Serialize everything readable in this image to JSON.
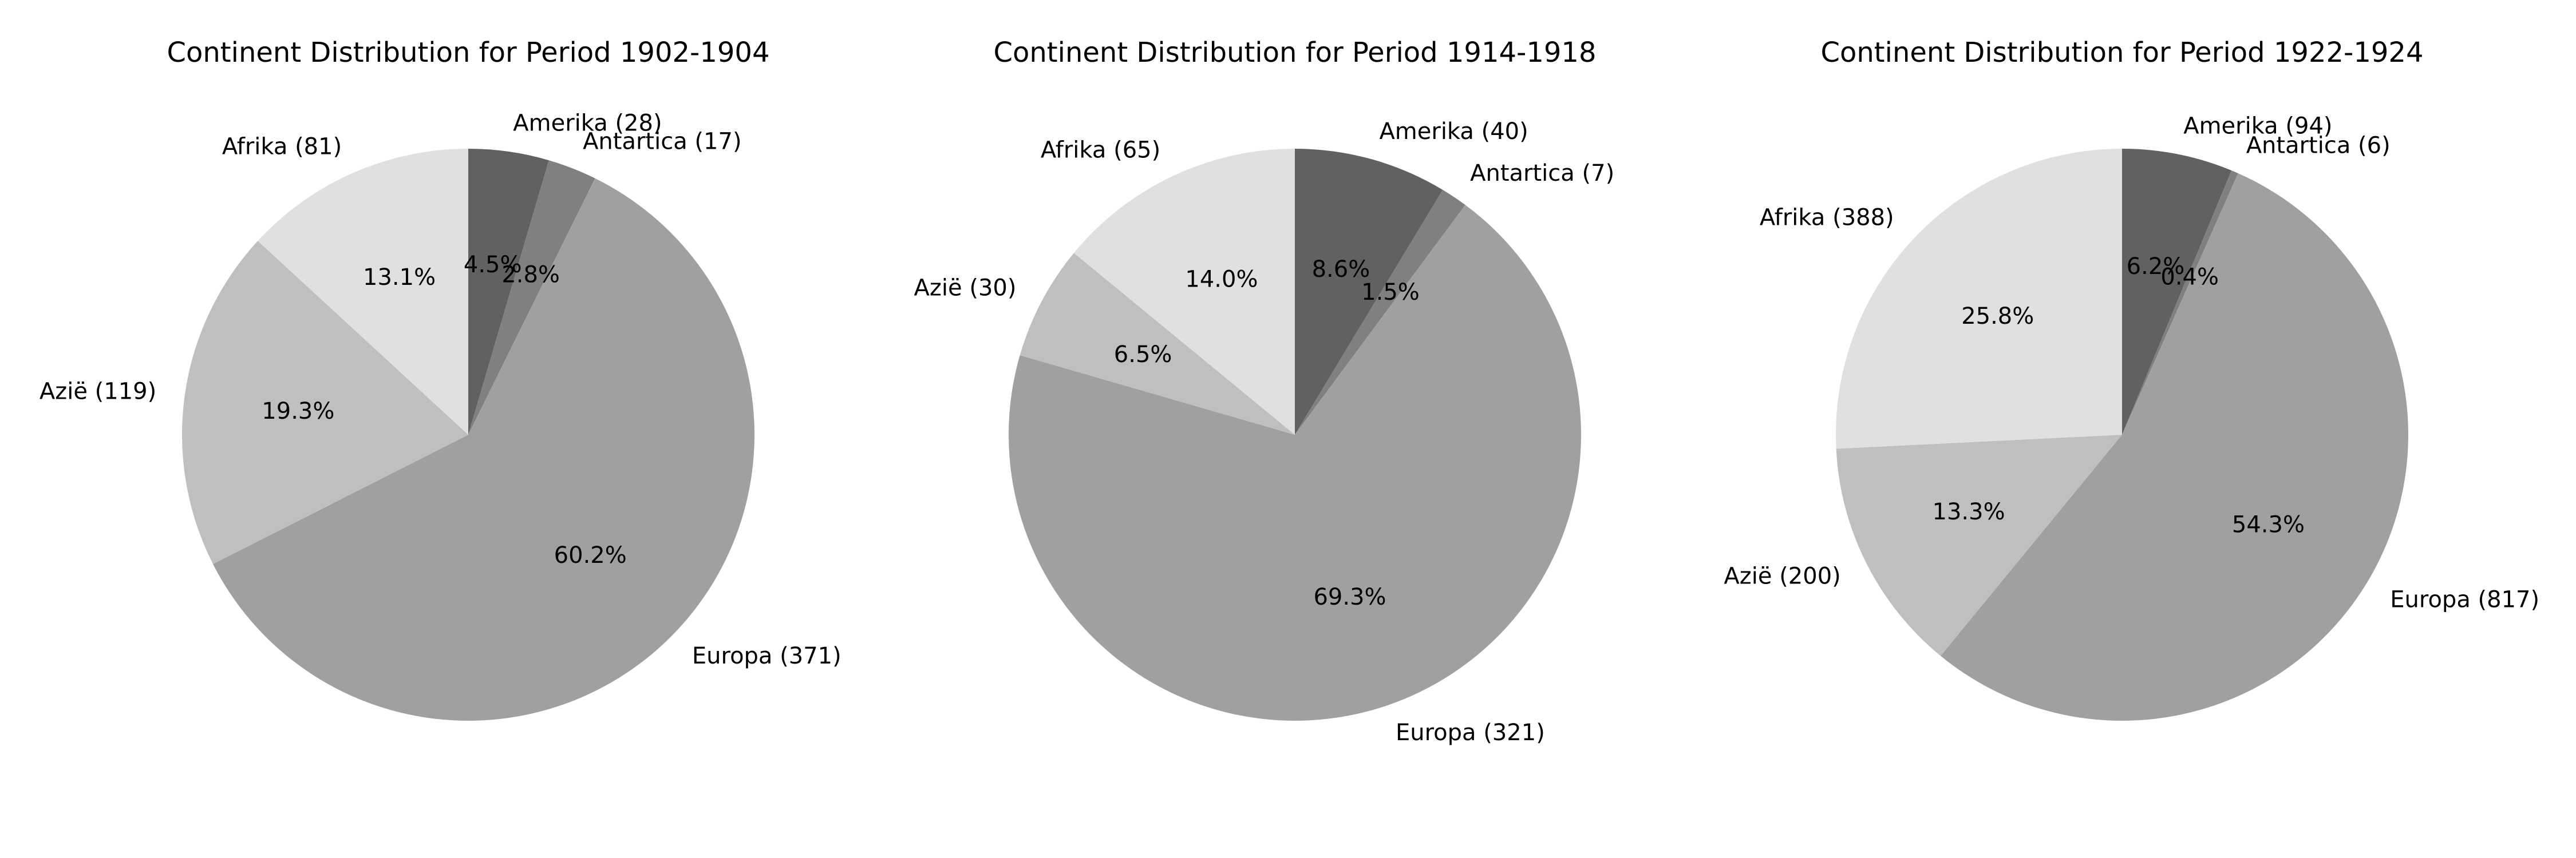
{
  "chart_data": [
    {
      "type": "pie",
      "title": "Continent Distribution for Period 1902-1904",
      "categories": [
        "Amerika",
        "Antartica",
        "Europa",
        "Azië",
        "Afrika"
      ],
      "values": [
        28,
        17,
        371,
        119,
        81
      ],
      "labels": [
        "Amerika (28)",
        "Antartica (17)",
        "Europa (371)",
        "Azië (119)",
        "Afrika (81)"
      ],
      "percent_labels": [
        "4.5%",
        "2.8%",
        "60.2%",
        "19.3%",
        "13.1%"
      ]
    },
    {
      "type": "pie",
      "title": "Continent Distribution for Period 1914-1918",
      "categories": [
        "Amerika",
        "Antartica",
        "Europa",
        "Azië",
        "Afrika"
      ],
      "values": [
        40,
        7,
        321,
        30,
        65
      ],
      "labels": [
        "Amerika (40)",
        "Antartica (7)",
        "Europa (321)",
        "Azië (30)",
        "Afrika (65)"
      ],
      "percent_labels": [
        "8.6%",
        "1.5%",
        "69.3%",
        "6.5%",
        "14.0%"
      ]
    },
    {
      "type": "pie",
      "title": "Continent Distribution for Period 1922-1924",
      "categories": [
        "Amerika",
        "Antartica",
        "Europa",
        "Azië",
        "Afrika"
      ],
      "values": [
        94,
        6,
        817,
        200,
        388
      ],
      "labels": [
        "Amerika (94)",
        "Antartica (6)",
        "Europa (817)",
        "Azië (200)",
        "Afrika (388)"
      ],
      "percent_labels": [
        "6.2%",
        "0.4%",
        "54.3%",
        "13.3%",
        "25.8%"
      ]
    }
  ],
  "colors": [
    "#616161",
    "#808080",
    "#a0a0a0",
    "#bfbfbf",
    "#e0e0e0"
  ]
}
